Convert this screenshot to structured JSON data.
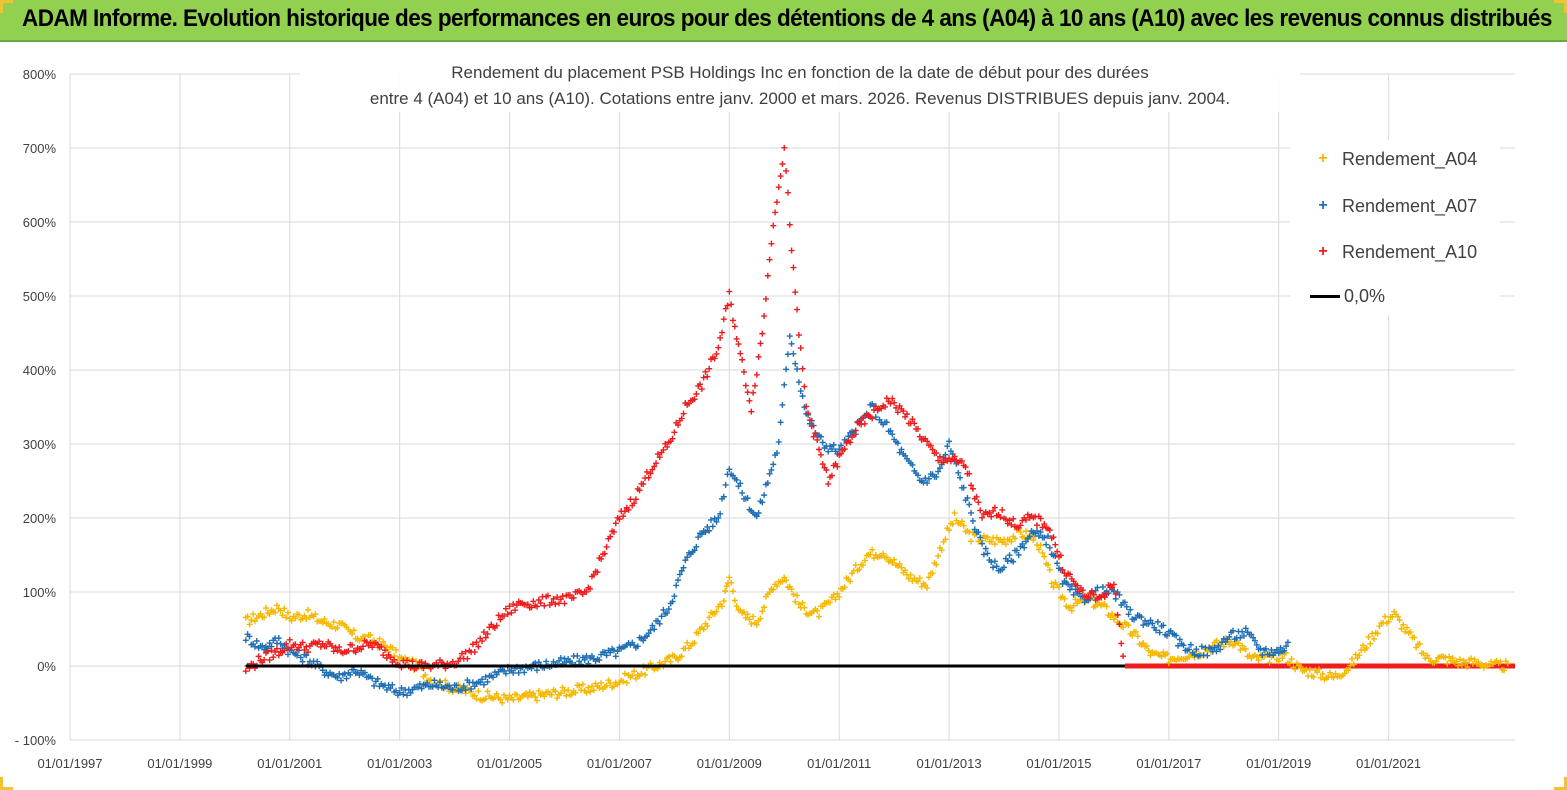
{
  "header": {
    "title": "ADAM Informe. Evolution historique des performances en euros pour des détentions de 4 ans (A04) à 10 ans (A10) avec les revenus connus distribués",
    "background": "#92d050"
  },
  "chart_data": {
    "type": "scatter",
    "title_line1": "Rendement du placement PSB Holdings Inc en fonction de la date de début pour des durées",
    "title_line2": "entre 4 (A04) et 10 ans (A10).  Cotations entre janv. 2000 et mars. 2026. Revenus DISTRIBUES depuis janv. 2004.",
    "xlabel": "",
    "ylabel": "",
    "xlim": [
      1997.0,
      2023.3
    ],
    "ylim": [
      -100,
      800
    ],
    "x_ticks": [
      1997,
      1999,
      2001,
      2003,
      2005,
      2007,
      2009,
      2011,
      2013,
      2015,
      2017,
      2019,
      2021
    ],
    "x_tick_labels": [
      "01/01/1997",
      "01/01/1999",
      "01/01/2001",
      "01/01/2003",
      "01/01/2005",
      "01/01/2007",
      "01/01/2009",
      "01/01/2011",
      "01/01/2013",
      "01/01/2015",
      "01/01/2017",
      "01/01/2019",
      "01/01/2021"
    ],
    "y_ticks": [
      -100,
      0,
      100,
      200,
      300,
      400,
      500,
      600,
      700,
      800
    ],
    "y_tick_labels": [
      "- 100%",
      "0%",
      "100%",
      "200%",
      "300%",
      "400%",
      "500%",
      "600%",
      "700%",
      "800%"
    ],
    "grid": true,
    "legend_position": "top-right",
    "series": [
      {
        "name": "Rendement_A04",
        "color": "#f5b800",
        "x": [
          2000.2,
          2000.5,
          2000.8,
          2001.0,
          2001.3,
          2001.6,
          2001.9,
          2002.2,
          2002.5,
          2002.8,
          2003.0,
          2003.3,
          2003.6,
          2004.0,
          2004.5,
          2005.0,
          2005.5,
          2006.0,
          2006.5,
          2007.0,
          2007.5,
          2008.0,
          2008.3,
          2008.6,
          2008.9,
          2009.0,
          2009.2,
          2009.5,
          2009.8,
          2010.0,
          2010.3,
          2010.6,
          2010.9,
          2011.2,
          2011.5,
          2011.8,
          2012.0,
          2012.3,
          2012.6,
          2012.9,
          2013.1,
          2013.4,
          2013.7,
          2014.0,
          2014.3,
          2014.6,
          2014.9,
          2015.2,
          2015.5,
          2015.8,
          2016.1,
          2016.4,
          2016.7,
          2017.0,
          2017.3,
          2017.6,
          2017.9,
          2018.2,
          2018.5,
          2018.8,
          2019.1,
          2019.4,
          2019.7,
          2020.0,
          2020.3,
          2020.6,
          2020.9,
          2021.1,
          2021.4,
          2021.7,
          2022.0,
          2022.3,
          2022.6,
          2022.9,
          2023.2
        ],
        "values": [
          60,
          70,
          80,
          65,
          70,
          60,
          55,
          40,
          35,
          25,
          10,
          0,
          -20,
          -30,
          -40,
          -45,
          -40,
          -35,
          -30,
          -20,
          -5,
          10,
          30,
          60,
          90,
          120,
          70,
          60,
          110,
          120,
          80,
          70,
          90,
          120,
          150,
          155,
          140,
          120,
          110,
          170,
          200,
          175,
          170,
          170,
          180,
          170,
          110,
          80,
          90,
          80,
          60,
          40,
          15,
          10,
          15,
          20,
          30,
          35,
          10,
          10,
          15,
          -5,
          -10,
          -15,
          0,
          30,
          60,
          70,
          40,
          10,
          10,
          5,
          5,
          0,
          0
        ]
      },
      {
        "name": "Rendement_A07",
        "color": "#1f6fb5",
        "x": [
          2000.2,
          2000.5,
          2000.8,
          2001.0,
          2001.3,
          2001.6,
          2001.9,
          2002.2,
          2002.5,
          2002.8,
          2003.0,
          2003.3,
          2003.6,
          2004.0,
          2004.5,
          2005.0,
          2005.5,
          2006.0,
          2006.5,
          2007.0,
          2007.3,
          2007.6,
          2007.9,
          2008.2,
          2008.5,
          2008.8,
          2009.0,
          2009.2,
          2009.5,
          2009.7,
          2009.9,
          2010.1,
          2010.4,
          2010.7,
          2011.0,
          2011.3,
          2011.6,
          2011.9,
          2012.2,
          2012.5,
          2012.8,
          2013.0,
          2013.3,
          2013.6,
          2013.9,
          2014.2,
          2014.5,
          2014.8,
          2015.1,
          2015.4,
          2015.7,
          2016.0,
          2016.3,
          2016.6,
          2016.9,
          2017.2,
          2017.5,
          2017.8,
          2018.1,
          2018.4,
          2018.7,
          2019.0,
          2019.2
        ],
        "values": [
          40,
          25,
          35,
          20,
          10,
          -5,
          -15,
          -5,
          -20,
          -30,
          -35,
          -30,
          -25,
          -30,
          -20,
          -5,
          0,
          5,
          10,
          20,
          30,
          50,
          80,
          140,
          180,
          200,
          270,
          240,
          200,
          250,
          300,
          450,
          340,
          300,
          290,
          320,
          350,
          320,
          280,
          250,
          260,
          300,
          230,
          160,
          130,
          150,
          180,
          170,
          110,
          90,
          100,
          100,
          70,
          60,
          50,
          30,
          20,
          20,
          40,
          45,
          20,
          20,
          30
        ]
      },
      {
        "name": "Rendement_A10",
        "color": "#ee1c1c",
        "x": [
          2000.2,
          2000.5,
          2000.8,
          2001.0,
          2001.3,
          2001.6,
          2001.9,
          2002.2,
          2002.5,
          2002.8,
          2003.0,
          2003.3,
          2003.6,
          2004.0,
          2004.3,
          2004.6,
          2004.9,
          2005.2,
          2005.5,
          2005.8,
          2006.1,
          2006.4,
          2006.7,
          2007.0,
          2007.3,
          2007.6,
          2007.9,
          2008.2,
          2008.5,
          2008.8,
          2009.0,
          2009.2,
          2009.4,
          2009.6,
          2009.8,
          2010.0,
          2010.2,
          2010.4,
          2010.6,
          2010.8,
          2011.0,
          2011.3,
          2011.6,
          2011.9,
          2012.2,
          2012.5,
          2012.8,
          2013.0,
          2013.3,
          2013.6,
          2013.9,
          2014.2,
          2014.5,
          2014.8,
          2015.1,
          2015.4,
          2015.7,
          2016.0,
          2016.2
        ],
        "values": [
          -5,
          10,
          20,
          30,
          25,
          30,
          20,
          25,
          30,
          15,
          5,
          0,
          0,
          5,
          20,
          45,
          70,
          85,
          85,
          90,
          90,
          100,
          150,
          200,
          230,
          270,
          300,
          350,
          380,
          430,
          500,
          420,
          350,
          450,
          600,
          700,
          500,
          350,
          300,
          250,
          280,
          320,
          340,
          360,
          340,
          310,
          280,
          280,
          270,
          200,
          210,
          190,
          200,
          190,
          130,
          100,
          90,
          110,
          0
        ]
      },
      {
        "name": "0,0%",
        "color": "#000000",
        "x": [
          2000.2,
          2016.2
        ],
        "values": [
          0,
          0
        ]
      }
    ],
    "zero_band": {
      "color": "#ee1c1c",
      "x_from": 2016.2,
      "x_to": 2023.3,
      "value": 0
    }
  }
}
